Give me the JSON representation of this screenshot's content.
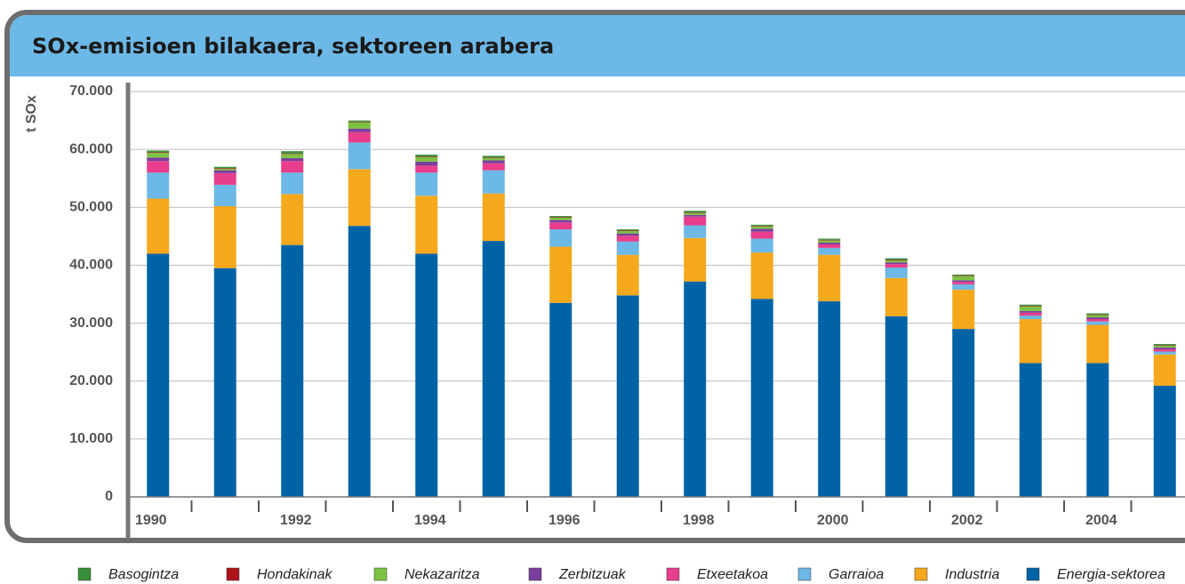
{
  "chart_data": {
    "type": "bar",
    "stacked": true,
    "title": "SOx-emisioen bilakaera, sektoreen arabera",
    "y_label": "t SOx",
    "categories": [
      "1990",
      null,
      "1992",
      null,
      "1994",
      null,
      "1996",
      null,
      "1998",
      null,
      "2000",
      null,
      "2002",
      null,
      "2004",
      null
    ],
    "series": [
      {
        "name": "Basogintza",
        "color": "#3a8f3a",
        "values": [
          300,
          200,
          400,
          200,
          300,
          300,
          200,
          200,
          300,
          200,
          200,
          300,
          200,
          200,
          200,
          200
        ]
      },
      {
        "name": "Hondakinak",
        "color": "#b0141c",
        "values": [
          100,
          100,
          100,
          100,
          100,
          100,
          100,
          100,
          100,
          100,
          100,
          100,
          100,
          100,
          100,
          100
        ]
      },
      {
        "name": "Nekazaritza",
        "color": "#7dc242",
        "values": [
          800,
          300,
          700,
          1100,
          800,
          400,
          400,
          400,
          300,
          400,
          400,
          300,
          700,
          800,
          400,
          300
        ]
      },
      {
        "name": "Zerbitzuak",
        "color": "#7b3f9e",
        "values": [
          600,
          500,
          500,
          600,
          700,
          500,
          400,
          400,
          300,
          500,
          300,
          300,
          300,
          300,
          300,
          300
        ]
      },
      {
        "name": "Etxeetakoa",
        "color": "#e83e8c",
        "values": [
          2000,
          2000,
          2000,
          1800,
          1200,
          1200,
          1200,
          1000,
          1500,
          1200,
          600,
          600,
          400,
          500,
          400,
          400
        ]
      },
      {
        "name": "Garraioa",
        "color": "#6cb8e6",
        "values": [
          4500,
          3700,
          3700,
          4600,
          4000,
          4000,
          3000,
          2300,
          2200,
          2400,
          1200,
          1800,
          900,
          600,
          600,
          500
        ]
      },
      {
        "name": "Industria",
        "color": "#f5a81c",
        "values": [
          9500,
          10700,
          8800,
          9800,
          10000,
          8200,
          9700,
          7000,
          7500,
          8000,
          8000,
          6600,
          6800,
          7600,
          6600,
          5400
        ]
      },
      {
        "name": "Energia-sektorea",
        "color": "#0063a6",
        "values": [
          42000,
          39500,
          43500,
          46800,
          42000,
          44200,
          33500,
          34800,
          37200,
          34200,
          33800,
          31200,
          29000,
          23100,
          23100,
          19200
        ]
      }
    ],
    "ylim": [
      0,
      70000
    ],
    "yticks": [
      0,
      {
        "value": 10000,
        "label": "10.000"
      },
      {
        "value": 20000,
        "label": "20.000"
      },
      {
        "value": 30000,
        "label": "30.000"
      },
      {
        "value": 40000,
        "label": "40.000"
      },
      {
        "value": 50000,
        "label": "50.000"
      },
      {
        "value": 60000,
        "label": "60.000"
      },
      {
        "value": 70000,
        "label": "70.000"
      }
    ],
    "grid": true
  }
}
